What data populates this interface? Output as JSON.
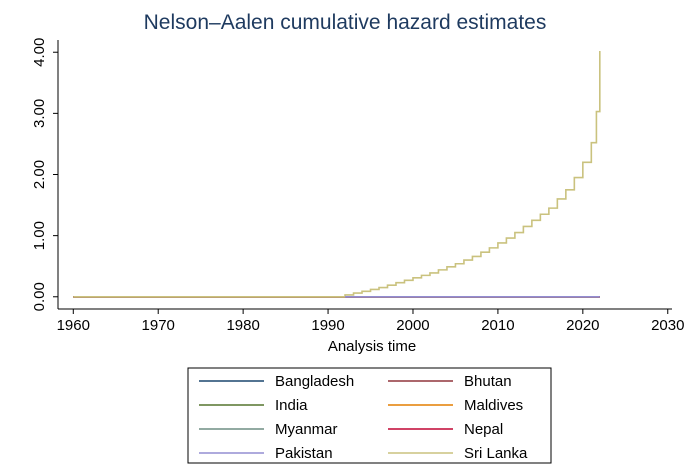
{
  "chart_data": {
    "type": "line",
    "step": "post",
    "title": "Nelson–Aalen cumulative hazard estimates",
    "x_label": "Analysis time",
    "xlim": [
      1958.2,
      2030.5
    ],
    "xticks": [
      1960,
      1970,
      1980,
      1990,
      2000,
      2010,
      2020,
      2030
    ],
    "ylim": [
      -0.2,
      4.2
    ],
    "yticks": [
      {
        "value": 0,
        "label": "0.00"
      },
      {
        "value": 1,
        "label": "1.00"
      },
      {
        "value": 2,
        "label": "2.00"
      },
      {
        "value": 3,
        "label": "3.00"
      },
      {
        "value": 4,
        "label": "4.00"
      }
    ],
    "legend": "bottom",
    "series": [
      {
        "name": "Bangladesh",
        "color": "#1a476f",
        "x": [
          1960,
          2022
        ],
        "values": [
          0,
          0
        ]
      },
      {
        "name": "Bhutan",
        "color": "#90353b",
        "x": [
          1960,
          2022
        ],
        "values": [
          0,
          0
        ]
      },
      {
        "name": "India",
        "color": "#55752f",
        "x": [
          1960,
          2022
        ],
        "values": [
          0,
          0
        ]
      },
      {
        "name": "Maldives",
        "color": "#e37e00",
        "x": [
          1960,
          2022
        ],
        "values": [
          0,
          0
        ]
      },
      {
        "name": "Myanmar",
        "color": "#6e8e84",
        "x": [
          1960,
          2022
        ],
        "values": [
          0,
          0
        ]
      },
      {
        "name": "Nepal",
        "color": "#c10534",
        "x": [
          1960,
          2022
        ],
        "values": [
          0,
          0
        ]
      },
      {
        "name": "Sri Lanka",
        "color": "#cac27e",
        "x": [
          1960,
          1992,
          1993,
          1994,
          1995,
          1996,
          1997,
          1998,
          1999,
          2000,
          2001,
          2002,
          2003,
          2004,
          2005,
          2006,
          2007,
          2008,
          2009,
          2010,
          2011,
          2012,
          2013,
          2014,
          2015,
          2016,
          2017,
          2018,
          2019,
          2020,
          2021,
          2021.6,
          2022
        ],
        "values": [
          0,
          0.03,
          0.06,
          0.09,
          0.12,
          0.15,
          0.19,
          0.23,
          0.27,
          0.31,
          0.35,
          0.39,
          0.44,
          0.49,
          0.54,
          0.6,
          0.66,
          0.73,
          0.8,
          0.88,
          0.96,
          1.05,
          1.15,
          1.25,
          1.35,
          1.45,
          1.6,
          1.75,
          1.95,
          2.2,
          2.52,
          3.03,
          4.02
        ]
      },
      {
        "name": "Pakistan",
        "color": "#938dd2",
        "x": [
          1992,
          2022
        ],
        "values": [
          0,
          0
        ]
      }
    ]
  }
}
